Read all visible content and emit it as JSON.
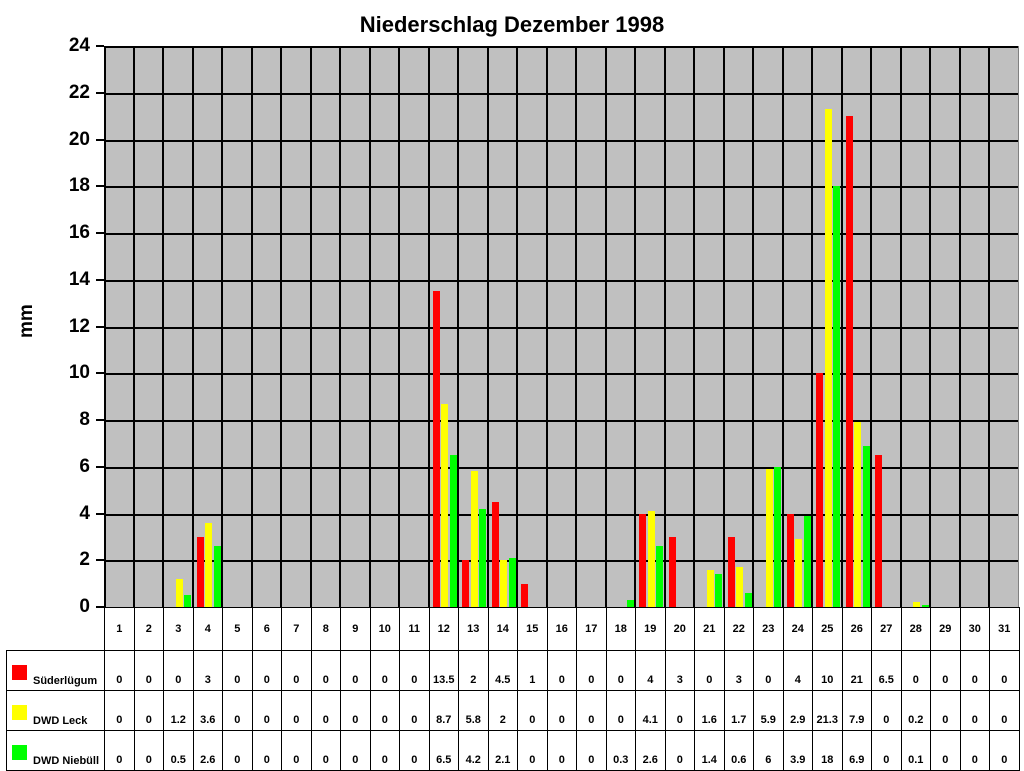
{
  "chart": {
    "title": "Niederschlag Dezember 1998",
    "ylabel": "mm"
  },
  "chart_data": {
    "type": "bar",
    "title": "Niederschlag Dezember 1998",
    "xlabel": "",
    "ylabel": "mm",
    "ylim": [
      0,
      24
    ],
    "yticks": [
      0,
      2,
      4,
      6,
      8,
      10,
      12,
      14,
      16,
      18,
      20,
      22,
      24
    ],
    "grid": true,
    "legend_position": "data-table-left",
    "categories": [
      "1",
      "2",
      "3",
      "4",
      "5",
      "6",
      "7",
      "8",
      "9",
      "10",
      "11",
      "12",
      "13",
      "14",
      "15",
      "16",
      "17",
      "18",
      "19",
      "20",
      "21",
      "22",
      "23",
      "24",
      "25",
      "26",
      "27",
      "28",
      "29",
      "30",
      "31"
    ],
    "series": [
      {
        "name": "Süderlügum",
        "color": "#ff0000",
        "values": [
          0,
          0,
          0,
          3,
          0,
          0,
          0,
          0,
          0,
          0,
          0,
          13.5,
          2,
          4.5,
          1,
          0,
          0,
          0,
          4,
          3,
          0,
          3,
          0,
          4,
          10,
          21,
          6.5,
          0,
          0,
          0,
          0
        ]
      },
      {
        "name": "DWD Leck",
        "color": "#ffff00",
        "values": [
          0,
          0,
          1.2,
          3.6,
          0,
          0,
          0,
          0,
          0,
          0,
          0,
          8.7,
          5.8,
          2,
          0,
          0,
          0,
          0,
          4.1,
          0,
          1.6,
          1.7,
          5.9,
          2.9,
          21.3,
          7.9,
          0,
          0.2,
          0,
          0,
          0
        ]
      },
      {
        "name": "DWD Niebüll",
        "color": "#00ff00",
        "values": [
          0,
          0,
          0.5,
          2.6,
          0,
          0,
          0,
          0,
          0,
          0,
          0,
          6.5,
          4.2,
          2.1,
          0,
          0,
          0,
          0.3,
          2.6,
          0,
          1.4,
          0.6,
          6,
          3.9,
          18,
          6.9,
          0,
          0.1,
          0,
          0,
          0
        ]
      }
    ]
  },
  "colors": {
    "plot_background": "#c0c0c0",
    "gridline": "#000000"
  }
}
